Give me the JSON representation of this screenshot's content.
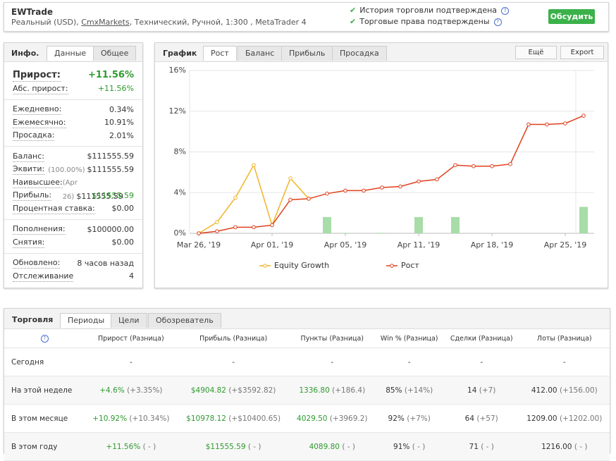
{
  "header": {
    "title": "EWTrade",
    "account": [
      "Реальный (USD), ",
      "CmxMarkets",
      ", Технический, Ручной, 1:300 , MetaTrader 4"
    ],
    "verified": [
      "История торговли подтверждена",
      "Торговые права подтверждены"
    ],
    "button": "Обсудить"
  },
  "info": {
    "title": "Инфо.",
    "tabs": [
      "Данные",
      "Общее"
    ],
    "groups": [
      [
        {
          "label": "Прирост:",
          "value": "+11.56%",
          "color": "#2e9a2e",
          "big": true
        },
        {
          "label": "Абс. прирост:",
          "value": "+11.56%",
          "color": "#2e9a2e"
        }
      ],
      [
        {
          "label": "Ежедневно:",
          "value": "0.34%"
        },
        {
          "label": "Ежемесячно:",
          "value": "10.91%"
        },
        {
          "label": "Просадка:",
          "value": "2.01%"
        }
      ],
      [
        {
          "label": "Баланс:",
          "value": "$111555.59"
        },
        {
          "label": "Эквити:",
          "note": "(100.00%)",
          "value": "$111555.59"
        },
        {
          "label": "Наивысшее:",
          "note": "(Apr 26)",
          "value": "$111555.59"
        },
        {
          "label": "Прибыль:",
          "value": "$11555.59",
          "color": "#2e9a2e"
        },
        {
          "label": "Процентная ставка:",
          "value": "$0.00"
        }
      ],
      [
        {
          "label": "Пополнения:",
          "value": "$100000.00"
        },
        {
          "label": "Снятия:",
          "value": "$0.00"
        }
      ],
      [
        {
          "label": "Обновлено:",
          "value": "8 часов назад"
        },
        {
          "label": "Отслеживание",
          "value": "4"
        }
      ]
    ]
  },
  "chart_panel": {
    "title": "График",
    "tabs": [
      "Рост",
      "Баланс",
      "Прибыль",
      "Просадка"
    ],
    "buttons": [
      "Ещё",
      "Export"
    ]
  },
  "chart_data": {
    "type": "line",
    "categories": [
      "Mar 26, '19",
      null,
      null,
      null,
      "Apr 01, '19",
      null,
      null,
      null,
      "Apr 05, '19",
      null,
      null,
      null,
      "Apr 11, '19",
      null,
      null,
      null,
      "Apr 18, '19",
      null,
      null,
      null,
      "Apr 25, '19",
      null
    ],
    "series": [
      {
        "name": "Equity Growth",
        "color": "#f0b429",
        "values": [
          0,
          1.1,
          3.5,
          6.7,
          0.8,
          5.4,
          3.4,
          null,
          null,
          null,
          null,
          null,
          null,
          null,
          null,
          null,
          null,
          null,
          null,
          null,
          null,
          null
        ]
      },
      {
        "name": "Рост",
        "color": "#e0401e",
        "values": [
          0,
          0.2,
          0.6,
          0.6,
          0.8,
          3.3,
          3.4,
          3.9,
          4.2,
          4.2,
          4.5,
          4.6,
          5.1,
          5.3,
          6.7,
          6.6,
          6.6,
          6.8,
          10.7,
          10.7,
          10.8,
          11.56
        ]
      },
      {
        "type": "bar",
        "color": "#a8dca8",
        "values": [
          0,
          0,
          0,
          0,
          0,
          0,
          0,
          1.6,
          0.05,
          0,
          0.05,
          0,
          1.6,
          0,
          1.6,
          0,
          0,
          0,
          0,
          0,
          0,
          2.6
        ]
      }
    ],
    "ylim": [
      0,
      16
    ],
    "yticks": [
      {
        "value": 0,
        "label": "0%"
      },
      {
        "value": 4,
        "label": "4%"
      },
      {
        "value": 8,
        "label": "8%"
      },
      {
        "value": 12,
        "label": "12%"
      },
      {
        "value": 16,
        "label": "16%"
      }
    ],
    "grid": true
  },
  "trading": {
    "title": "Торговля",
    "tabs": [
      "Периоды",
      "Цели",
      "Обозреватель"
    ],
    "headers": [
      "Прирост (Разница)",
      "Прибыль (Разница)",
      "Пункты (Разница)",
      "Win % (Разница)",
      "Сделки (Разница)",
      "Лоты (Разница)"
    ],
    "rows": [
      {
        "label": "Сегодня",
        "cells": [
          {
            "value": "-"
          },
          {
            "value": "-"
          },
          {
            "value": "-"
          },
          {
            "value": "-"
          },
          {
            "value": "-"
          },
          {
            "value": "-"
          }
        ]
      },
      {
        "label": "На этой неделе",
        "cells": [
          {
            "value": "+4.6%",
            "diff": "(+3.35%)"
          },
          {
            "value": "$4904.82",
            "diff": "(+$3592.82)"
          },
          {
            "value": "1336.80",
            "diff": "(+186.4)"
          },
          {
            "value": "85%",
            "diff": "(+14%)"
          },
          {
            "value": "14",
            "diff": "(+7)"
          },
          {
            "value": "412.00",
            "diff": "(+156.00)"
          }
        ]
      },
      {
        "label": "В этом месяце",
        "cells": [
          {
            "value": "+10.92%",
            "diff": "(+10.34%)"
          },
          {
            "value": "$10978.12",
            "diff": "(+$10400.65)"
          },
          {
            "value": "4029.50",
            "diff": "(+3969.2)"
          },
          {
            "value": "92%",
            "diff": "(+7%)"
          },
          {
            "value": "64",
            "diff": "(+57)"
          },
          {
            "value": "1209.00",
            "diff": "(+1202.00)"
          }
        ]
      },
      {
        "label": "В этом году",
        "cells": [
          {
            "value": "+11.56%",
            "diff": "( - )"
          },
          {
            "value": "$11555.59",
            "diff": "( - )"
          },
          {
            "value": "4089.80",
            "diff": "( - )"
          },
          {
            "value": "91%",
            "diff": "( - )"
          },
          {
            "value": "71",
            "diff": "( - )"
          },
          {
            "value": "1216.00",
            "diff": "( - )"
          }
        ]
      }
    ]
  }
}
